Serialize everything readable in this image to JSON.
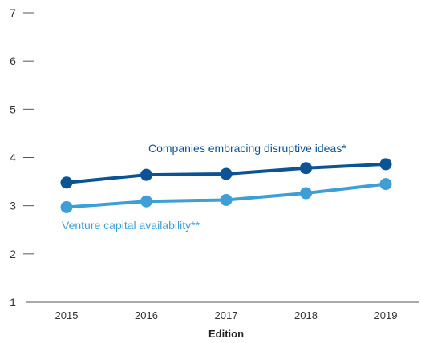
{
  "chart_data": {
    "type": "line",
    "title": "",
    "xlabel": "Edition",
    "ylabel": "",
    "x": [
      "2015",
      "2016",
      "2017",
      "2018",
      "2019"
    ],
    "ylim": [
      1,
      7
    ],
    "yticks": [
      "1",
      "2",
      "3",
      "4",
      "5",
      "6",
      "7"
    ],
    "grid": false,
    "series": [
      {
        "name": "Companies embracing disruptive ideas*",
        "color": "#0b5394",
        "values": [
          3.48,
          3.64,
          3.66,
          3.78,
          3.86
        ]
      },
      {
        "name": "Venture capital availability**",
        "color": "#3d9fd6",
        "values": [
          2.97,
          3.09,
          3.12,
          3.26,
          3.45
        ]
      }
    ]
  }
}
